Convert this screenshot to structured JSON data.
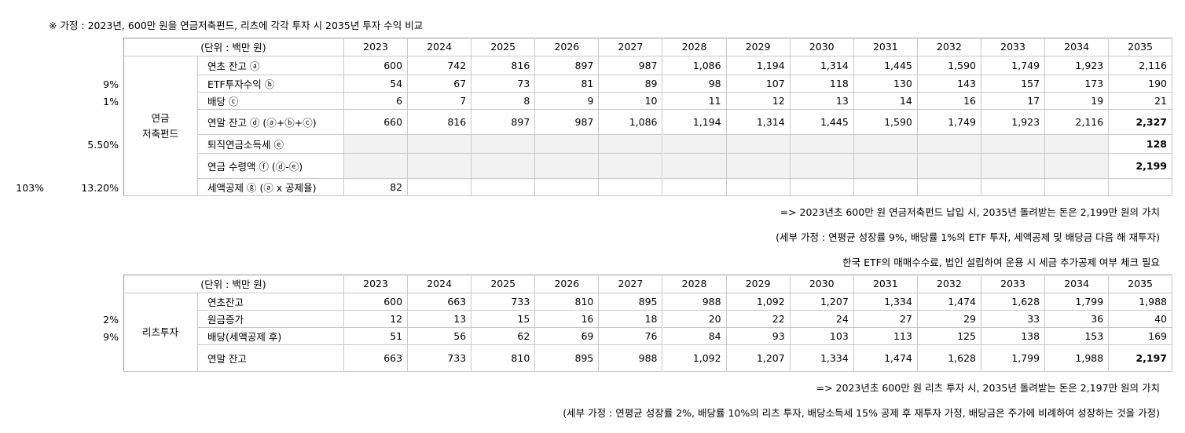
{
  "header": {
    "title": "※ 가정 : 2023년, 600만 원을 연금저축펀드, 리츠에 각각 투자 시 2035년 투자 수익 비교"
  },
  "tables": [
    {
      "unit_label": "(단위 : 백만 원)",
      "years": [
        "2023",
        "2024",
        "2025",
        "2026",
        "2027",
        "2028",
        "2029",
        "2030",
        "2031",
        "2032",
        "2033",
        "2034",
        "2035"
      ],
      "group_label": [
        "연금",
        "저축펀드"
      ],
      "rows": [
        {
          "label": "연초 잔고 ⓐ",
          "values": [
            "600",
            "742",
            "816",
            "897",
            "987",
            "1,086",
            "1,194",
            "1,314",
            "1,445",
            "1,590",
            "1,749",
            "1,923",
            "2,116"
          ]
        },
        {
          "side": "9%",
          "label": "ETF투자수익 ⓑ",
          "values": [
            "54",
            "67",
            "73",
            "81",
            "89",
            "98",
            "107",
            "118",
            "130",
            "143",
            "157",
            "173",
            "190"
          ]
        },
        {
          "side": "1%",
          "label": "배당 ⓒ",
          "values": [
            "6",
            "7",
            "8",
            "9",
            "10",
            "11",
            "12",
            "13",
            "14",
            "16",
            "17",
            "19",
            "21"
          ]
        },
        {
          "label": "연말 잔고 ⓓ (ⓐ+ⓑ+ⓒ)",
          "values": [
            "660",
            "816",
            "897",
            "987",
            "1,086",
            "1,194",
            "1,314",
            "1,445",
            "1,590",
            "1,749",
            "1,923",
            "2,116",
            "2,327"
          ],
          "bold_last": true
        },
        {
          "side": "5.50%",
          "label": "퇴직연금소득세 ⓔ",
          "values": [
            null,
            null,
            null,
            null,
            null,
            null,
            null,
            null,
            null,
            null,
            null,
            null,
            "128"
          ],
          "bold_last": true,
          "shaded": true
        },
        {
          "label": "연금 수령액 ⓕ (ⓓ-ⓔ)",
          "values": [
            null,
            null,
            null,
            null,
            null,
            null,
            null,
            null,
            null,
            null,
            null,
            null,
            "2,199"
          ],
          "bold_last": true,
          "shaded": true
        },
        {
          "side_extra": "103%",
          "side": "13.20%",
          "label": "세액공제 ⓖ (ⓐ x 공제율)",
          "values": [
            "82",
            null,
            null,
            null,
            null,
            null,
            null,
            null,
            null,
            null,
            null,
            null,
            null
          ]
        }
      ],
      "notes": [
        "=> 2023년초 600만 원 연금저축펀드 납입 시, 2035년 돌려받는 돈은 2,199만 원의 가치",
        "(세부 가정 : 연평균 성장률 9%, 배당률 1%의 ETF 투자, 세액공제 및 배당금 다음 해 재투자)",
        "한국 ETF의 매매수수료, 법인 설립하여 운용 시 세금 추가공제 여부 체크 필요"
      ]
    },
    {
      "unit_label": "(단위 : 백만 원)",
      "years": [
        "2023",
        "2024",
        "2025",
        "2026",
        "2027",
        "2028",
        "2029",
        "2030",
        "2031",
        "2032",
        "2033",
        "2034",
        "2035"
      ],
      "group_label": [
        "리츠투자"
      ],
      "rows": [
        {
          "label": "연초잔고",
          "values": [
            "600",
            "663",
            "733",
            "810",
            "895",
            "988",
            "1,092",
            "1,207",
            "1,334",
            "1,474",
            "1,628",
            "1,799",
            "1,988"
          ]
        },
        {
          "side": "2%",
          "label": "원금증가",
          "values": [
            "12",
            "13",
            "15",
            "16",
            "18",
            "20",
            "22",
            "24",
            "27",
            "29",
            "33",
            "36",
            "40"
          ]
        },
        {
          "side": "9%",
          "label": "배당(세액공제 후)",
          "values": [
            "51",
            "56",
            "62",
            "69",
            "76",
            "84",
            "93",
            "103",
            "113",
            "125",
            "138",
            "153",
            "169"
          ]
        },
        {
          "label": "연말 잔고",
          "values": [
            "663",
            "733",
            "810",
            "895",
            "988",
            "1,092",
            "1,207",
            "1,334",
            "1,474",
            "1,628",
            "1,799",
            "1,988",
            "2,197"
          ],
          "bold_last": true
        }
      ],
      "notes": [
        "=> 2023년초 600만 원 리츠 투자 시, 2035년 돌려받는 돈은 2,197만 원의 가치",
        "(세부 가정 : 연평균 성장률 2%, 배당률 10%의 리츠 투자, 배당소득세 15% 공제 후 재투자 가정, 배당금은 주가에 비례하여 성장하는 것을 가정)"
      ]
    }
  ]
}
